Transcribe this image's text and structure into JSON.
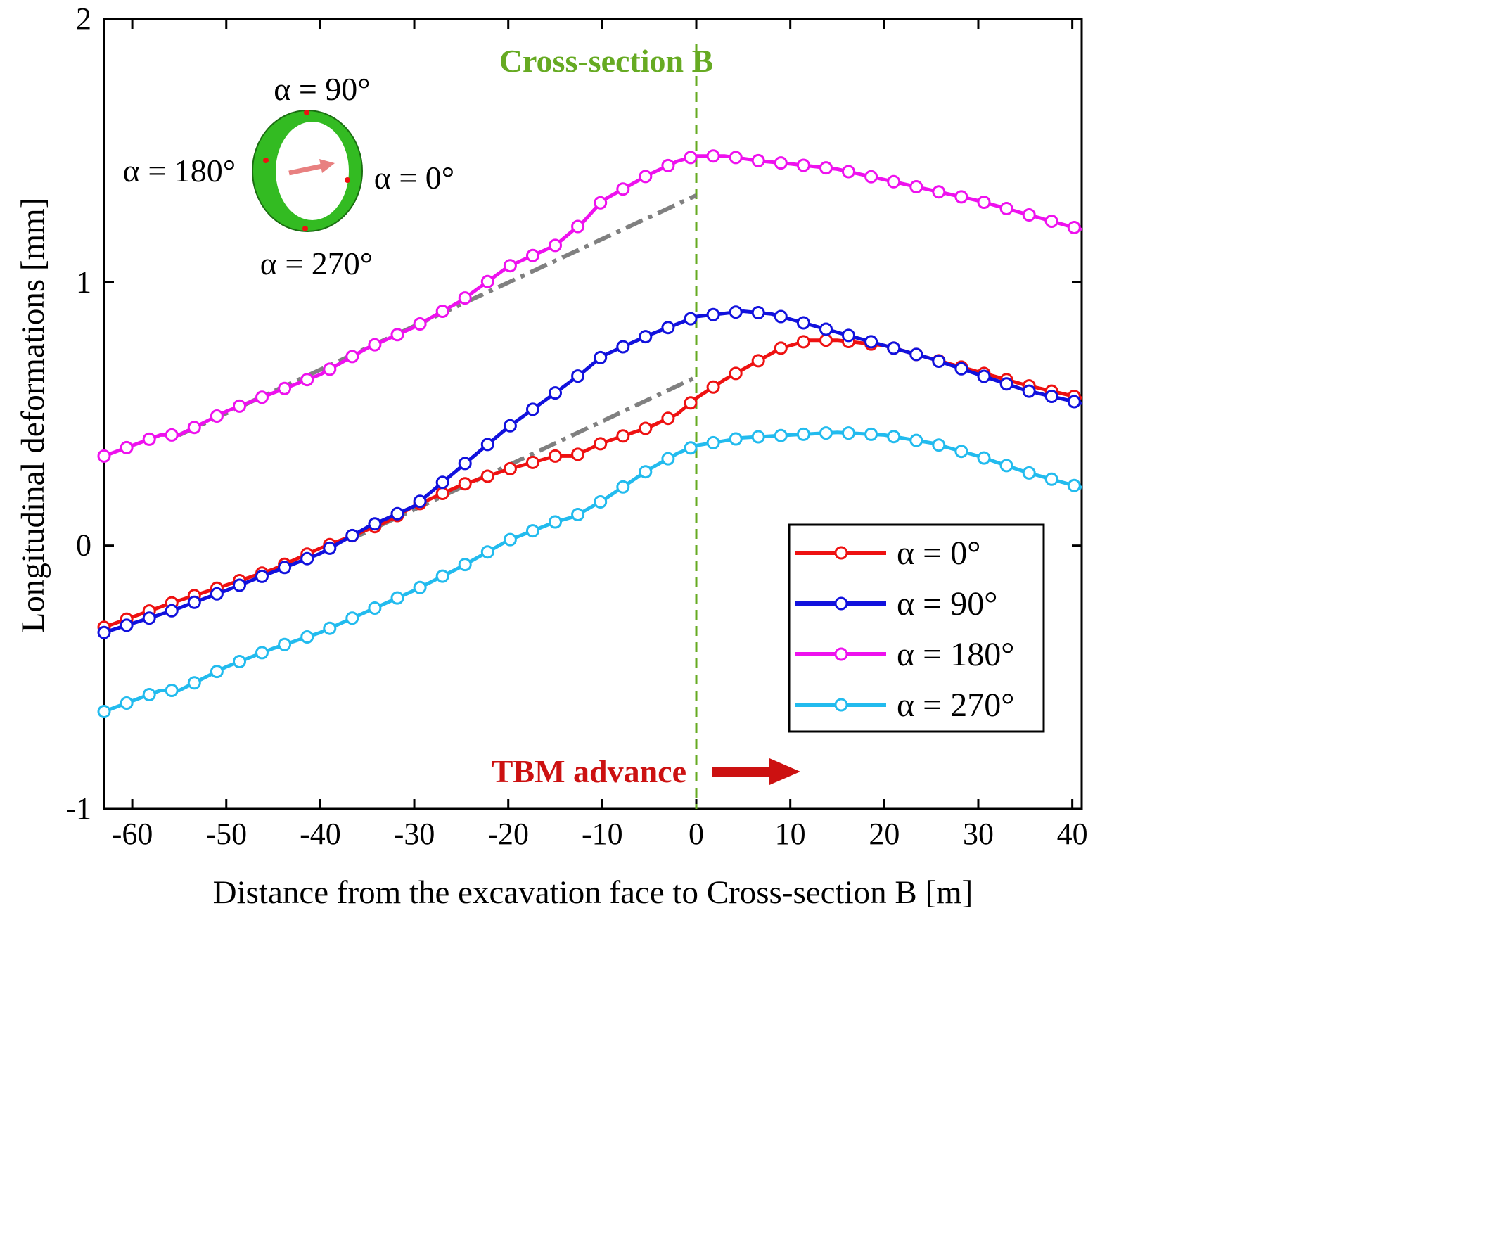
{
  "chart_data": {
    "type": "line",
    "xlabel": "Distance from the excavation face to Cross-section B [m]",
    "ylabel": "Longitudinal  deformations  [mm]",
    "xlim": [
      -63,
      41
    ],
    "ylim": [
      -1,
      2
    ],
    "x_ticks": [
      -60,
      -50,
      -40,
      -30,
      -20,
      -10,
      0,
      10,
      20,
      30,
      40
    ],
    "y_ticks": [
      -1,
      0,
      1,
      2
    ],
    "x_tick_labels": [
      "-60",
      "-50",
      "-40",
      "-30",
      "-20",
      "-10",
      "0",
      "10",
      "20",
      "30",
      "40"
    ],
    "y_tick_labels": [
      "-1",
      "0",
      "1",
      "2"
    ],
    "series": [
      {
        "name": "α = 0°",
        "color": "#ee1111",
        "points": [
          [
            -63,
            -0.31
          ],
          [
            -56,
            -0.22
          ],
          [
            -50,
            -0.15
          ],
          [
            -45,
            -0.09
          ],
          [
            -40,
            -0.01
          ],
          [
            -35,
            0.06
          ],
          [
            -33,
            0.09
          ],
          [
            -30,
            0.15
          ],
          [
            -25,
            0.23
          ],
          [
            -20,
            0.29
          ],
          [
            -15,
            0.34
          ],
          [
            -13,
            0.34
          ],
          [
            -10,
            0.39
          ],
          [
            -5,
            0.45
          ],
          [
            -2,
            0.5
          ],
          [
            0,
            0.56
          ],
          [
            3,
            0.63
          ],
          [
            6,
            0.69
          ],
          [
            9,
            0.75
          ],
          [
            12,
            0.78
          ],
          [
            15,
            0.78
          ],
          [
            20,
            0.76
          ],
          [
            25,
            0.71
          ],
          [
            30,
            0.66
          ],
          [
            35,
            0.61
          ],
          [
            41,
            0.56
          ]
        ]
      },
      {
        "name": "α = 90°",
        "color": "#1111dd",
        "points": [
          [
            -63,
            -0.33
          ],
          [
            -56,
            -0.25
          ],
          [
            -50,
            -0.17
          ],
          [
            -45,
            -0.1
          ],
          [
            -40,
            -0.03
          ],
          [
            -35,
            0.07
          ],
          [
            -30,
            0.15
          ],
          [
            -25,
            0.3
          ],
          [
            -20,
            0.45
          ],
          [
            -15,
            0.58
          ],
          [
            -12,
            0.66
          ],
          [
            -10,
            0.72
          ],
          [
            -5,
            0.8
          ],
          [
            0,
            0.87
          ],
          [
            5,
            0.89
          ],
          [
            8,
            0.88
          ],
          [
            12,
            0.84
          ],
          [
            15,
            0.81
          ],
          [
            20,
            0.76
          ],
          [
            25,
            0.71
          ],
          [
            30,
            0.65
          ],
          [
            35,
            0.59
          ],
          [
            41,
            0.54
          ]
        ]
      },
      {
        "name": "α = 180°",
        "color": "#ee11ee",
        "points": [
          [
            -63,
            0.34
          ],
          [
            -57,
            0.42
          ],
          [
            -55,
            0.42
          ],
          [
            -50,
            0.51
          ],
          [
            -45,
            0.58
          ],
          [
            -40,
            0.65
          ],
          [
            -35,
            0.75
          ],
          [
            -30,
            0.83
          ],
          [
            -25,
            0.93
          ],
          [
            -20,
            1.06
          ],
          [
            -15,
            1.14
          ],
          [
            -12,
            1.23
          ],
          [
            -10,
            1.31
          ],
          [
            -5,
            1.41
          ],
          [
            -2,
            1.46
          ],
          [
            0,
            1.48
          ],
          [
            3,
            1.48
          ],
          [
            7,
            1.46
          ],
          [
            10,
            1.45
          ],
          [
            15,
            1.43
          ],
          [
            20,
            1.39
          ],
          [
            25,
            1.35
          ],
          [
            30,
            1.31
          ],
          [
            35,
            1.26
          ],
          [
            41,
            1.2
          ]
        ]
      },
      {
        "name": "α = 270°",
        "color": "#22bbee",
        "points": [
          [
            -63,
            -0.63
          ],
          [
            -57,
            -0.55
          ],
          [
            -55,
            -0.55
          ],
          [
            -50,
            -0.46
          ],
          [
            -45,
            -0.39
          ],
          [
            -40,
            -0.33
          ],
          [
            -35,
            -0.25
          ],
          [
            -30,
            -0.17
          ],
          [
            -25,
            -0.08
          ],
          [
            -20,
            0.02
          ],
          [
            -15,
            0.09
          ],
          [
            -13,
            0.11
          ],
          [
            -10,
            0.17
          ],
          [
            -5,
            0.29
          ],
          [
            -2,
            0.35
          ],
          [
            0,
            0.38
          ],
          [
            5,
            0.41
          ],
          [
            10,
            0.42
          ],
          [
            15,
            0.43
          ],
          [
            20,
            0.42
          ],
          [
            25,
            0.39
          ],
          [
            30,
            0.34
          ],
          [
            35,
            0.28
          ],
          [
            41,
            0.22
          ]
        ]
      }
    ],
    "reference_lines": [
      {
        "name": "trend-upper",
        "color": "#808080",
        "points": [
          [
            -55,
            0.42
          ],
          [
            0,
            1.33
          ]
        ]
      },
      {
        "name": "trend-lower",
        "color": "#808080",
        "points": [
          [
            -37,
            0.02
          ],
          [
            0,
            0.64
          ]
        ]
      }
    ],
    "vline": {
      "x": 0,
      "color": "#66aa22",
      "label": "Cross-section B"
    },
    "annotations": {
      "tbm_advance": "TBM advance",
      "tbm_color": "#cc1111"
    },
    "inset": {
      "label_90": "α = 90°",
      "label_180": "α = 180°",
      "label_0": "α = 0°",
      "label_270": "α = 270°",
      "ring_color": "#33bb22"
    },
    "legend": {
      "position": "bottom-right",
      "entries": [
        "α = 0°",
        "α = 90°",
        "α = 180°",
        "α = 270°"
      ]
    }
  }
}
